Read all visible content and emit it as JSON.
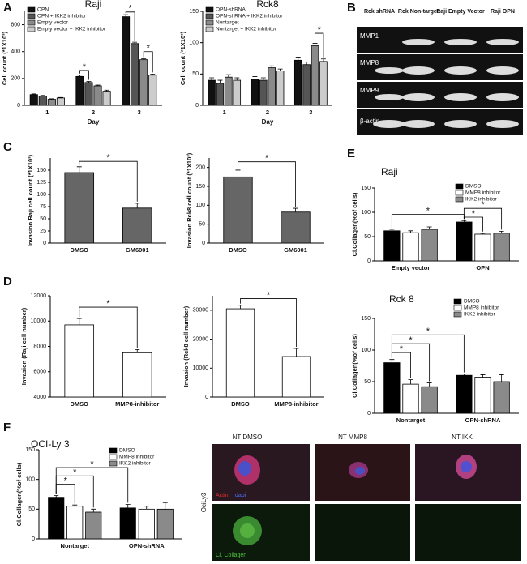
{
  "panel_labels": [
    "A",
    "B",
    "C",
    "D",
    "E",
    "F"
  ],
  "chart_data": [
    {
      "type": "bar",
      "title": "Raji",
      "xlabel": "Day",
      "ylabel": "Cell count (*1X10³)",
      "categories": [
        "1",
        "2",
        "3"
      ],
      "series": [
        {
          "name": "OPN",
          "color": "#111111",
          "values": [
            80,
            215,
            660
          ],
          "errors": [
            5,
            10,
            15
          ]
        },
        {
          "name": "OPN + IKK2 inhibitor",
          "color": "#555555",
          "values": [
            70,
            170,
            460
          ],
          "errors": [
            4,
            8,
            10
          ]
        },
        {
          "name": "Empty vector",
          "color": "#8a8a8a",
          "values": [
            45,
            145,
            340
          ],
          "errors": [
            4,
            6,
            8
          ]
        },
        {
          "name": "Empty vector + IKK2 inhibitor",
          "color": "#cccccc",
          "values": [
            55,
            105,
            225
          ],
          "errors": [
            4,
            8,
            8
          ]
        }
      ],
      "ylim": [
        0,
        700
      ],
      "yticks": [
        0,
        200,
        400,
        600
      ],
      "annotations": [
        "*",
        "*",
        "*"
      ]
    },
    {
      "type": "bar",
      "title": "Rck8",
      "xlabel": "Day",
      "ylabel": "Cell count (*1X10³)",
      "categories": [
        "1",
        "2",
        "3"
      ],
      "series": [
        {
          "name": "OPN-shRNA",
          "color": "#111111",
          "values": [
            40,
            42,
            72
          ],
          "errors": [
            4,
            4,
            5
          ]
        },
        {
          "name": "OPN-shRNA + IKK2 inhibitor",
          "color": "#555555",
          "values": [
            35,
            40,
            65
          ],
          "errors": [
            5,
            4,
            4
          ]
        },
        {
          "name": "Nontarget",
          "color": "#8a8a8a",
          "values": [
            45,
            60,
            95
          ],
          "errors": [
            4,
            3,
            4
          ]
        },
        {
          "name": "Nontarget + IKK2 inhibitor",
          "color": "#cccccc",
          "values": [
            40,
            55,
            70
          ],
          "errors": [
            4,
            3,
            4
          ]
        }
      ],
      "ylim": [
        0,
        150
      ],
      "yticks": [
        0,
        50,
        100,
        150
      ],
      "annotations": [
        "*"
      ]
    },
    {
      "type": "bar",
      "ylabel": "Invasion Raji cell count (*1X10³)",
      "categories": [
        "DMSO",
        "GM6001"
      ],
      "values": [
        145,
        72
      ],
      "errors": [
        12,
        10
      ],
      "color": "#666666",
      "ylim": [
        0,
        175
      ],
      "yticks": [
        0,
        25,
        50,
        75,
        100,
        125,
        150
      ],
      "annotations": [
        "*"
      ]
    },
    {
      "type": "bar",
      "ylabel": "Invasion Rck8 cell count (*1X10³)",
      "categories": [
        "DMSO",
        "GM6001"
      ],
      "values": [
        175,
        82
      ],
      "errors": [
        18,
        10
      ],
      "color": "#666666",
      "ylim": [
        0,
        225
      ],
      "yticks": [
        0,
        50,
        100,
        150,
        200
      ],
      "annotations": [
        "*"
      ]
    },
    {
      "type": "bar",
      "ylabel": "Invasion (Raji cell number)",
      "categories": [
        "DMSO",
        "MMP8-inhibitor"
      ],
      "values": [
        9700,
        7500
      ],
      "errors": [
        500,
        250
      ],
      "color": "#ffffff",
      "ylim": [
        4000,
        12000
      ],
      "yticks": [
        4000,
        6000,
        8000,
        10000,
        12000
      ],
      "annotations": [
        "*"
      ]
    },
    {
      "type": "bar",
      "ylabel": "Invasion (Rck8 cell number)",
      "categories": [
        "DMSO",
        "MMP8-inhibitor"
      ],
      "values": [
        30500,
        14000
      ],
      "errors": [
        1200,
        2800
      ],
      "color": "#ffffff",
      "ylim": [
        0,
        35000
      ],
      "yticks": [
        0,
        10000,
        20000,
        30000
      ],
      "annotations": [
        "*"
      ]
    },
    {
      "type": "bar",
      "title": "Raji",
      "ylabel": "Cl.Collagen(%of cells)",
      "categories": [
        "Empty vector",
        "OPN"
      ],
      "series": [
        {
          "name": "DMSO",
          "color": "#000000",
          "values": [
            62,
            80
          ],
          "errors": [
            3,
            3
          ]
        },
        {
          "name": "MMP8 inhibitor",
          "color": "#ffffff",
          "values": [
            58,
            55
          ],
          "errors": [
            4,
            2
          ]
        },
        {
          "name": "IKK2 inhibitor",
          "color": "#8a8a8a",
          "values": [
            65,
            57
          ],
          "errors": [
            5,
            4
          ]
        }
      ],
      "ylim": [
        0,
        150
      ],
      "yticks": [
        0,
        50,
        100,
        150
      ],
      "annotations": [
        "*",
        "*",
        "*"
      ]
    },
    {
      "type": "bar",
      "title": "Rck 8",
      "ylabel": "Cl.Collagen(%of cells)",
      "categories": [
        "Nontarget",
        "OPN-shRNA"
      ],
      "series": [
        {
          "name": "DMSO",
          "color": "#000000",
          "values": [
            80,
            60
          ],
          "errors": [
            5,
            2
          ]
        },
        {
          "name": "MMP8 inhibitor",
          "color": "#ffffff",
          "values": [
            46,
            57
          ],
          "errors": [
            7,
            4
          ]
        },
        {
          "name": "IKK2 inhibitor",
          "color": "#8a8a8a",
          "values": [
            42,
            50
          ],
          "errors": [
            6,
            11
          ]
        }
      ],
      "ylim": [
        0,
        150
      ],
      "yticks": [
        0,
        50,
        100,
        150
      ],
      "annotations": [
        "*",
        "*",
        "*"
      ]
    },
    {
      "type": "bar",
      "title": "OCI-Ly 3",
      "ylabel": "Cl.Collagen(%of cells)",
      "categories": [
        "Nontarget",
        "OPN-shRNA"
      ],
      "series": [
        {
          "name": "DMSO",
          "color": "#000000",
          "values": [
            70,
            52
          ],
          "errors": [
            3,
            6
          ]
        },
        {
          "name": "MMP8 inhibitor",
          "color": "#ffffff",
          "values": [
            55,
            50
          ],
          "errors": [
            2,
            5
          ]
        },
        {
          "name": "IKK2 inhibitor",
          "color": "#8a8a8a",
          "values": [
            45,
            50
          ],
          "errors": [
            5,
            11
          ]
        }
      ],
      "ylim": [
        0,
        150
      ],
      "yticks": [
        0,
        50,
        100,
        150
      ],
      "annotations": [
        "*",
        "*",
        "*"
      ]
    }
  ],
  "gel": {
    "lanes": [
      "Rck shRNA",
      "Rck Non-target",
      "Raji Empty Vector",
      "Raji OPN"
    ],
    "rows": [
      "MMP1",
      "MMP8",
      "MMP9",
      "β-actin"
    ]
  },
  "microscopy": {
    "columns": [
      "NT DMSO",
      "NT MMP8",
      "NT IKK"
    ],
    "side_label": "OciLy3",
    "stain_actin": "Actin",
    "stain_dapi": "dapi",
    "stain_collagen": "Cl. Collagen"
  }
}
